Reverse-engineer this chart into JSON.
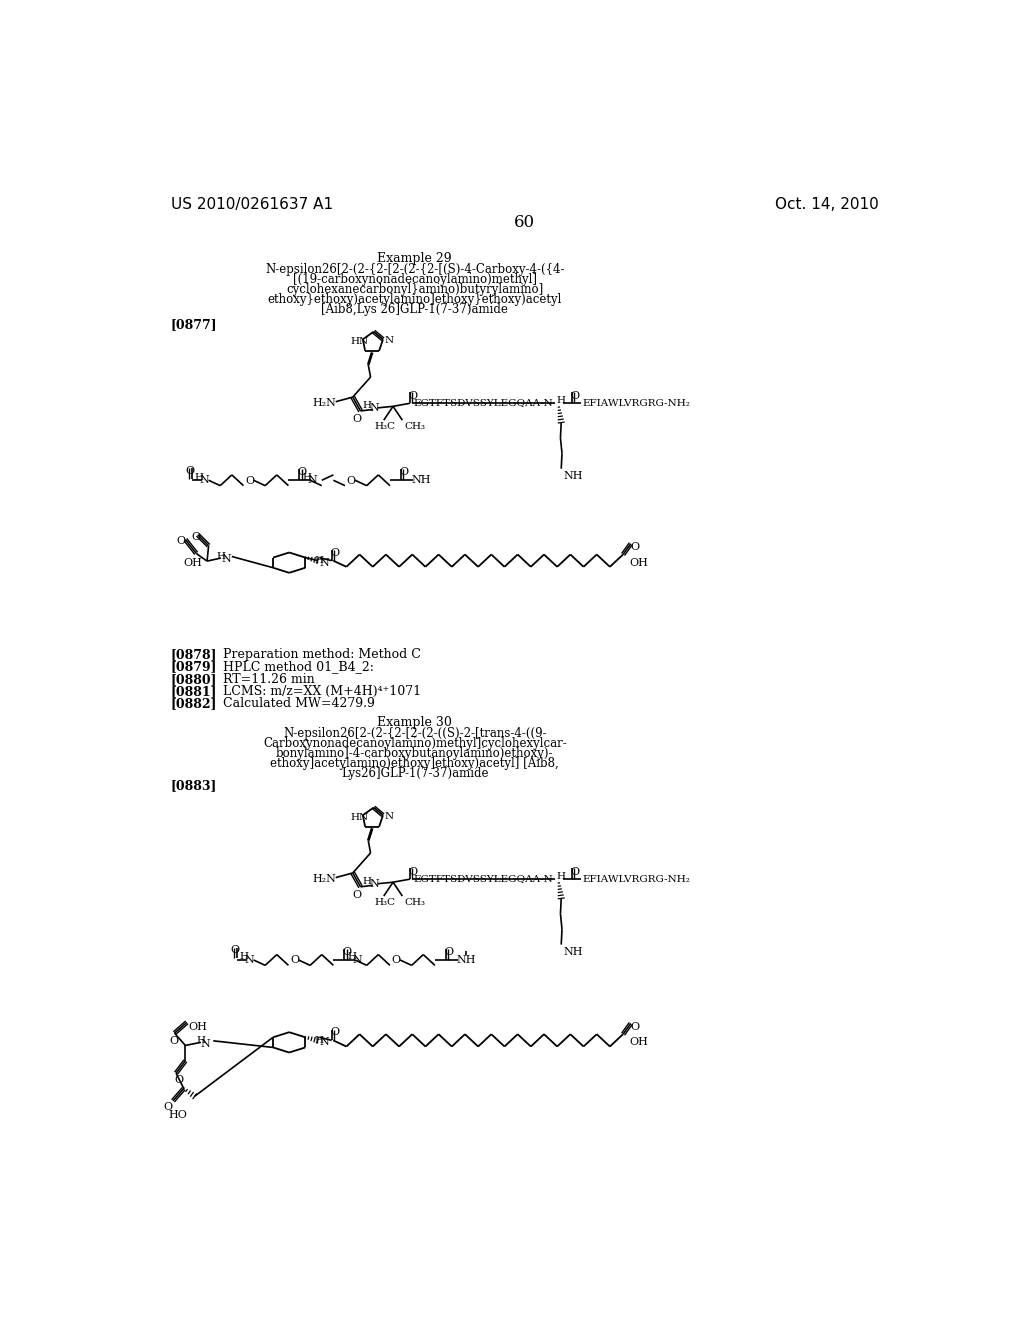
{
  "background_color": "#ffffff",
  "header_left": "US 2010/0261637 A1",
  "header_right": "Oct. 14, 2010",
  "page_number": "60",
  "example29_title": "Example 29",
  "example29_name_line1": "N-epsilon26[2-(2-{2-[2-(2-{2-[(S)-4-Carboxy-4-({4-",
  "example29_name_line2": "[(19-carboxynonadecanoylamino)methyl]",
  "example29_name_line3": "cyclohexanecarbonyl}amino)butyrylamino]",
  "example29_name_line4": "ethoxy}ethoxy)acetylamino]ethoxy}ethoxy)acetyl",
  "example29_name_line5": "[Aib8,Lys 26]GLP-1(7-37)amide",
  "tag0877": "[0877]",
  "tag0878": "[0878]",
  "tag0879": "[0879]",
  "tag0880": "[0880]",
  "tag0881": "[0881]",
  "tag0882": "[0882]",
  "label0878": "Preparation method: Method C",
  "label0879": "HPLC method 01_B4_2:",
  "label0880": "RT=11.26 min",
  "label0881": "LCMS: m/z=XX (M+4H)⁴⁺1071",
  "label0882": "Calculated MW=4279.9",
  "example30_title": "Example 30",
  "example30_name_line1": "N-epsilon26[2-(2-{2-[2-(2-((S)-2-[trans-4-((9-",
  "example30_name_line2": "Carboxynonadecanoylamino)methyl]cyclohexylcar-",
  "example30_name_line3": "bonylamino]-4-carboxybutanoylamino)ethoxy)-",
  "example30_name_line4": "ethoxy]acetylamino)ethoxy]ethoxy)acetyl] [Aib8,",
  "example30_name_line5": "Lys26]GLP-1(7-37)amide",
  "tag0883": "[0883]",
  "text_color": "#000000"
}
